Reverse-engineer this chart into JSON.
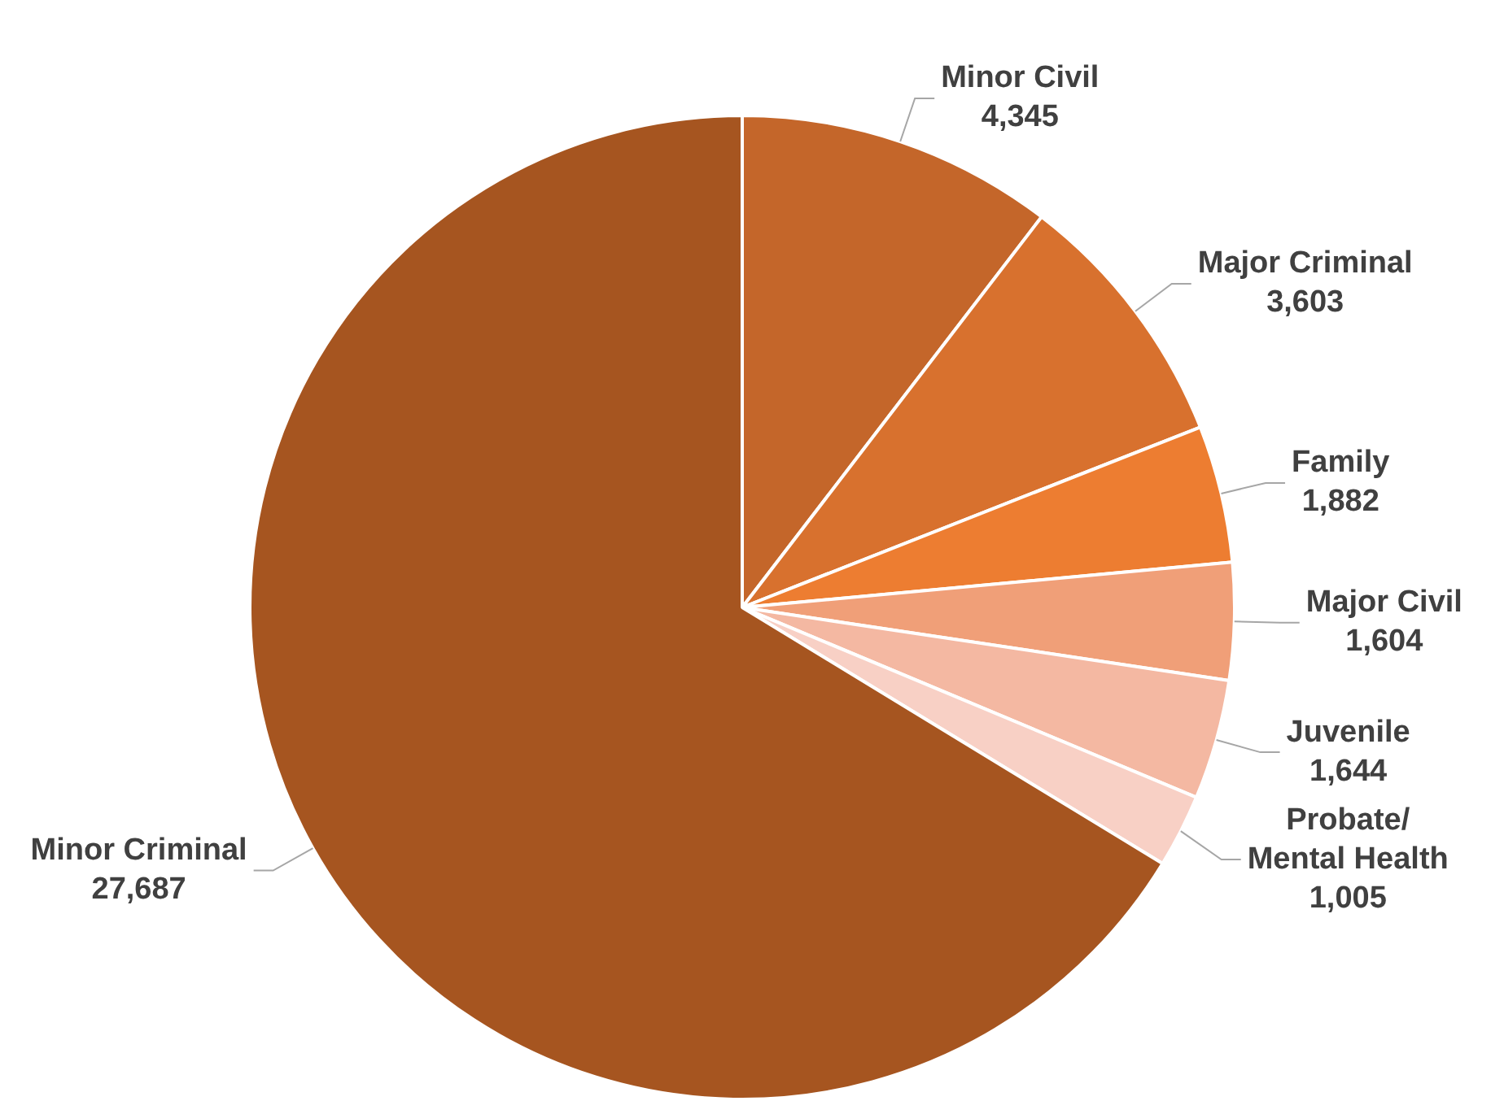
{
  "chart_data": {
    "type": "pie",
    "categories": [
      "Minor Civil",
      "Major Criminal",
      "Family",
      "Major Civil",
      "Juvenile",
      "Probate/Mental Health",
      "Minor Criminal"
    ],
    "values": [
      4345,
      3603,
      1882,
      1604,
      1644,
      1005,
      27687
    ],
    "colors": [
      "#c4662a",
      "#d8712e",
      "#ed7d31",
      "#f09f78",
      "#f4b8a2",
      "#f8d0c5",
      "#a65520"
    ],
    "value_labels": [
      "4,345",
      "3,603",
      "1,882",
      "1,604",
      "1,644",
      "1,005",
      "27,687"
    ],
    "legend": false
  }
}
